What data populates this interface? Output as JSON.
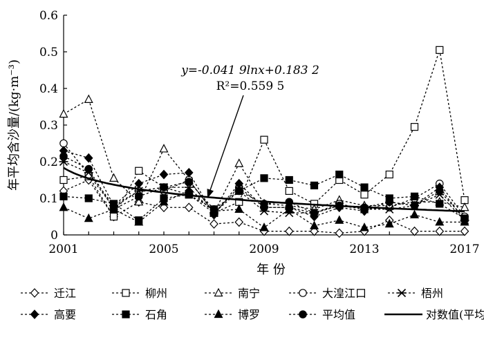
{
  "chart_data": {
    "type": "line",
    "xlabel": "年 份",
    "ylabel": "年平均含沙量/(kg·m⁻³)",
    "xlim": [
      2001,
      2017
    ],
    "ylim": [
      0,
      0.6
    ],
    "xticks": [
      "2001",
      "2005",
      "2009",
      "2013",
      "2017"
    ],
    "yticks": [
      "0",
      "0.1",
      "0.2",
      "0.3",
      "0.4",
      "0.5",
      "0.6"
    ],
    "x": [
      2001,
      2002,
      2003,
      2004,
      2005,
      2006,
      2007,
      2008,
      2009,
      2010,
      2011,
      2012,
      2013,
      2014,
      2015,
      2016,
      2017
    ],
    "series": [
      {
        "name": "迁江",
        "marker": "diamond-open",
        "values": [
          0.12,
          0.15,
          0.05,
          0.09,
          0.075,
          0.075,
          0.03,
          0.035,
          0.01,
          0.01,
          0.01,
          0.005,
          0.01,
          0.04,
          0.01,
          0.01,
          0.01
        ]
      },
      {
        "name": "柳州",
        "marker": "square-open",
        "values": [
          0.15,
          0.16,
          0.05,
          0.175,
          0.13,
          0.11,
          0.06,
          0.09,
          0.26,
          0.12,
          0.085,
          0.15,
          0.11,
          0.165,
          0.295,
          0.505,
          0.095
        ]
      },
      {
        "name": "南宁",
        "marker": "triangle-open",
        "values": [
          0.33,
          0.37,
          0.155,
          0.09,
          0.235,
          0.15,
          0.06,
          0.195,
          0.085,
          0.08,
          0.07,
          0.095,
          0.08,
          0.08,
          0.09,
          0.09,
          0.075
        ]
      },
      {
        "name": "大湟江口",
        "marker": "circle-open",
        "values": [
          0.25,
          0.165,
          0.075,
          0.12,
          0.12,
          0.15,
          0.06,
          0.13,
          0.075,
          0.075,
          0.06,
          0.085,
          0.07,
          0.075,
          0.1,
          0.14,
          0.05
        ]
      },
      {
        "name": "梧州",
        "marker": "asterisk",
        "values": [
          0.2,
          0.17,
          0.08,
          0.12,
          0.13,
          0.13,
          0.06,
          0.12,
          0.065,
          0.06,
          0.06,
          0.08,
          0.07,
          0.07,
          0.08,
          0.11,
          0.04
        ]
      },
      {
        "name": "高要",
        "marker": "diamond-filled",
        "values": [
          0.23,
          0.21,
          0.08,
          0.14,
          0.165,
          0.17,
          0.055,
          0.14,
          0.075,
          0.075,
          0.05,
          0.075,
          0.065,
          0.09,
          0.08,
          0.13,
          0.04
        ]
      },
      {
        "name": "石角",
        "marker": "square-filled",
        "values": [
          0.105,
          0.1,
          0.085,
          0.04,
          0.1,
          0.11,
          0.07,
          0.12,
          0.155,
          0.15,
          0.135,
          0.165,
          0.13,
          0.1,
          0.105,
          0.085,
          0.045
        ]
      },
      {
        "name": "博罗",
        "marker": "triangle-filled",
        "values": [
          0.075,
          0.045,
          0.07,
          0.035,
          0.09,
          0.12,
          0.065,
          0.07,
          0.02,
          0.07,
          0.025,
          0.04,
          0.02,
          0.03,
          0.055,
          0.035,
          0.035
        ]
      },
      {
        "name": "平均值",
        "marker": "circle-filled",
        "values": [
          0.215,
          0.18,
          0.07,
          0.105,
          0.13,
          0.145,
          0.07,
          0.12,
          0.085,
          0.09,
          0.06,
          0.08,
          0.075,
          0.09,
          0.08,
          0.12,
          0.045
        ]
      }
    ],
    "fit": {
      "name": "对数值(平均值)",
      "a": -0.0419,
      "b": 0.1832,
      "equation": "y=-0.041 9lnx+0.183 2",
      "r2": "R²=0.559 5"
    }
  },
  "legend": {
    "row1": [
      "迁江",
      "柳州",
      "南宁",
      "大湟江口",
      "梧州"
    ],
    "row2": [
      "高要",
      "石角",
      "博罗",
      "平均值",
      "对数值(平均值)"
    ]
  }
}
